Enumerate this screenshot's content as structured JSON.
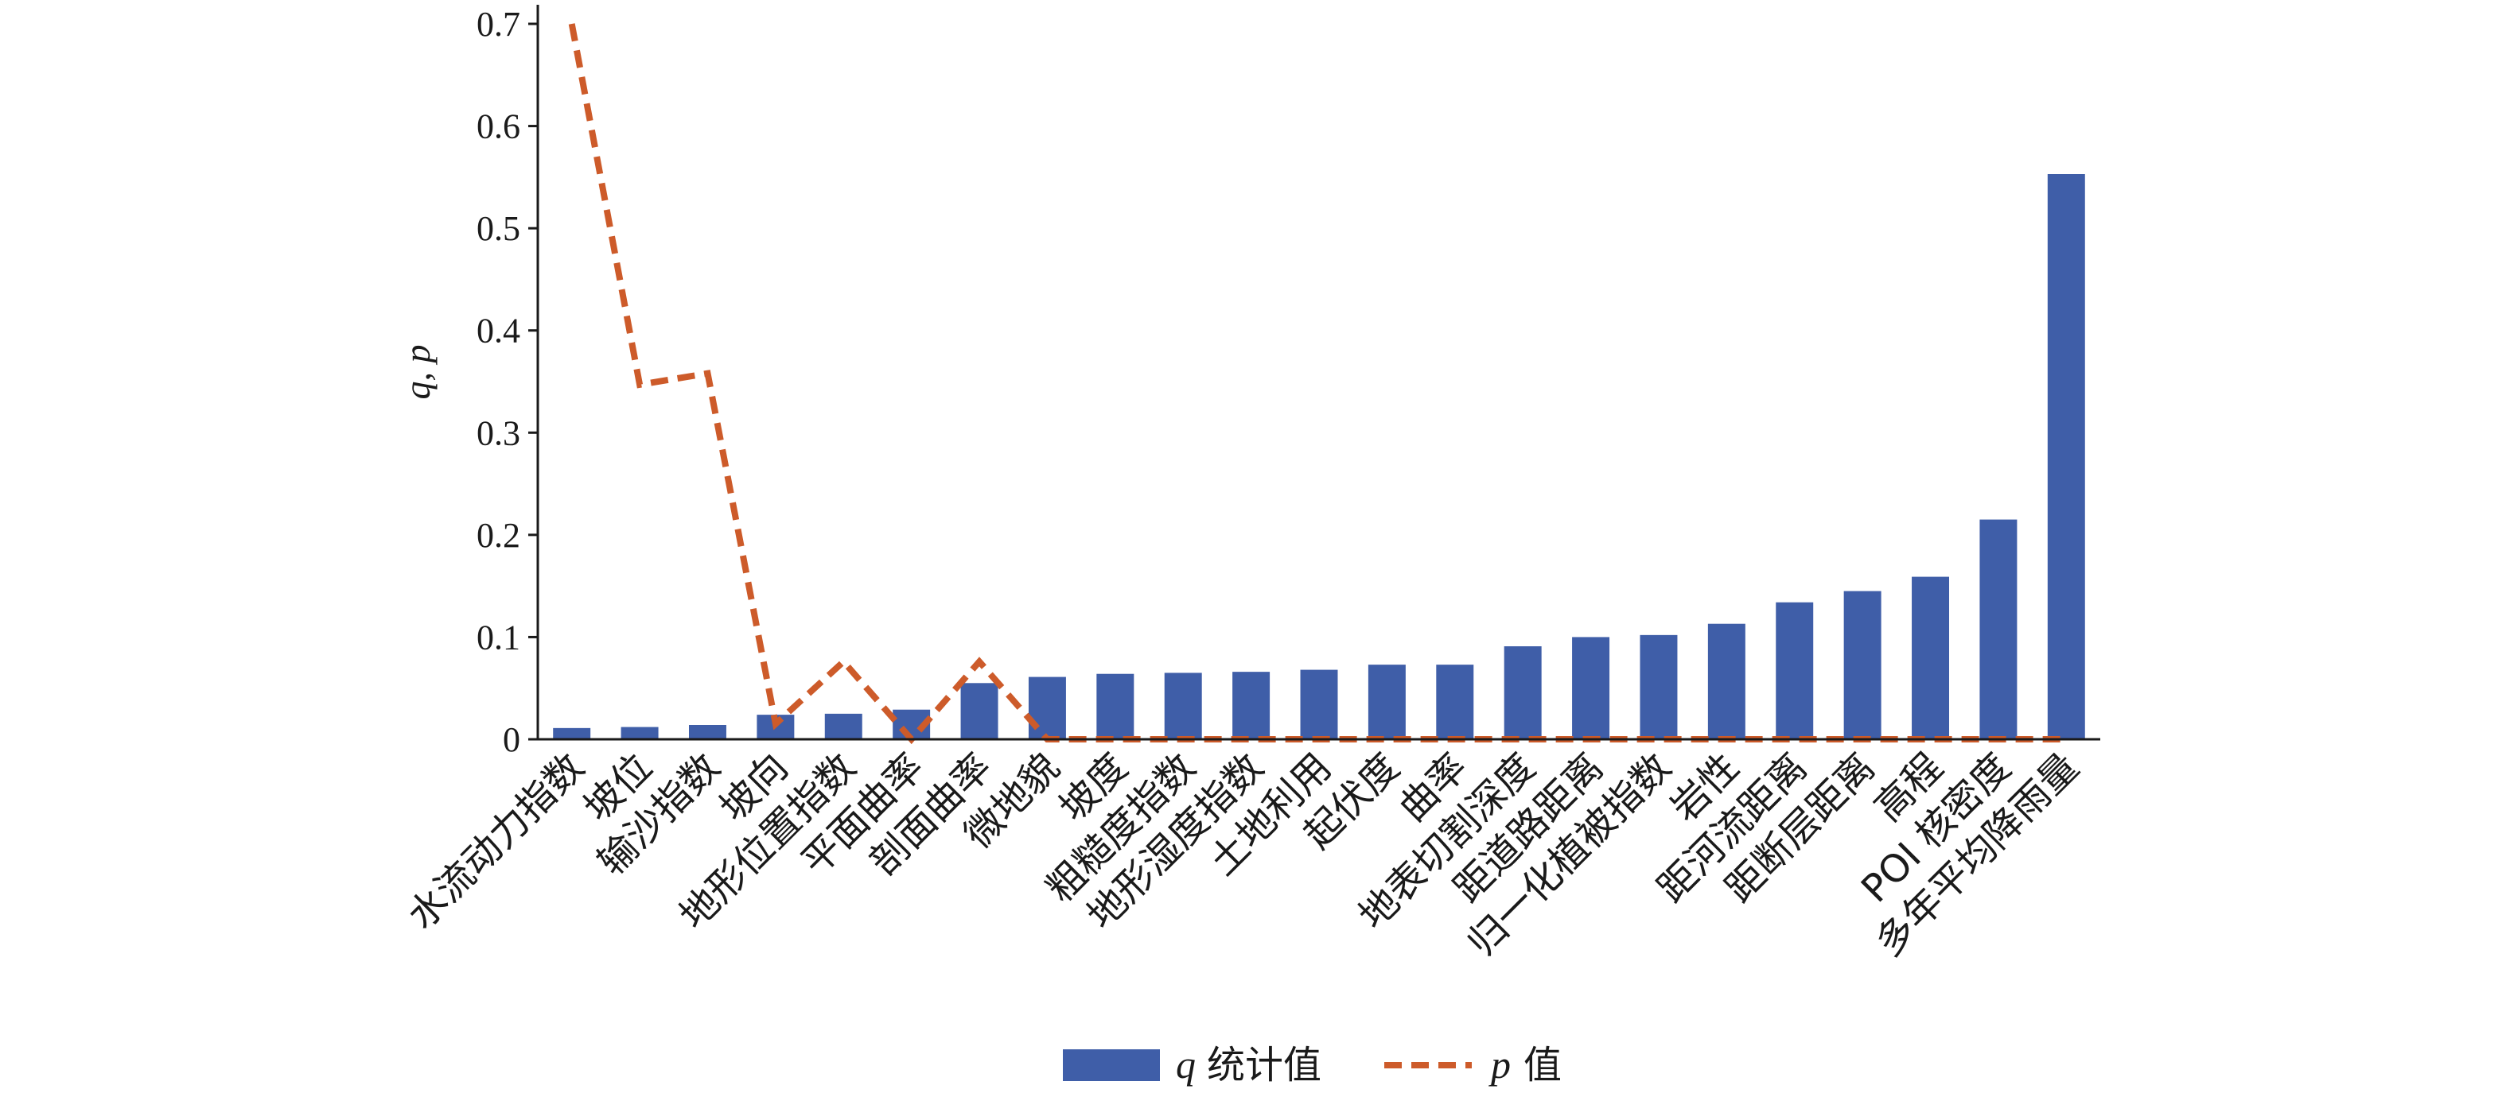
{
  "chart_data": {
    "type": "bar",
    "categories": [
      "水流动力指数",
      "坡位",
      "输沙指数",
      "坡向",
      "地形位置指数",
      "平面曲率",
      "剖面曲率",
      "微地貌",
      "坡度",
      "粗糙度指数",
      "地形湿度指数",
      "土地利用",
      "起伏度",
      "曲率",
      "地表切割深度",
      "距道路距离",
      "归一化植被指数",
      "岩性",
      "距河流距离",
      "距断层距离",
      "高程",
      "POI 核密度",
      "多年平均降雨量"
    ],
    "series": [
      {
        "name": "q 统计值",
        "type": "bar",
        "color": "#3f5ea8",
        "values": [
          0.011,
          0.012,
          0.014,
          0.024,
          0.025,
          0.029,
          0.055,
          0.061,
          0.064,
          0.065,
          0.066,
          0.068,
          0.073,
          0.073,
          0.091,
          0.1,
          0.102,
          0.113,
          0.134,
          0.145,
          0.159,
          0.215,
          0.553
        ]
      },
      {
        "name": "p 值",
        "type": "line",
        "style": "dashed",
        "color": "#cd5b2a",
        "values": [
          0.7,
          0.347,
          0.358,
          0.015,
          0.076,
          0.0,
          0.076,
          0.0,
          0.0,
          0.0,
          0.0,
          0.0,
          0.0,
          0.0,
          0.0,
          0.0,
          0.0,
          0.0,
          0.0,
          0.0,
          0.0,
          0.0,
          0.0
        ]
      }
    ],
    "ylabel": "q, p",
    "ylim": [
      0,
      0.7
    ],
    "yticks": [
      "0",
      "0.1",
      "0.2",
      "0.3",
      "0.4",
      "0.5",
      "0.6",
      "0.7"
    ],
    "grid": false,
    "legend_position": "bottom-center"
  },
  "legend": {
    "q_italic": "q",
    "q_rest": "统计值",
    "p_italic": "p",
    "p_rest": "值"
  }
}
